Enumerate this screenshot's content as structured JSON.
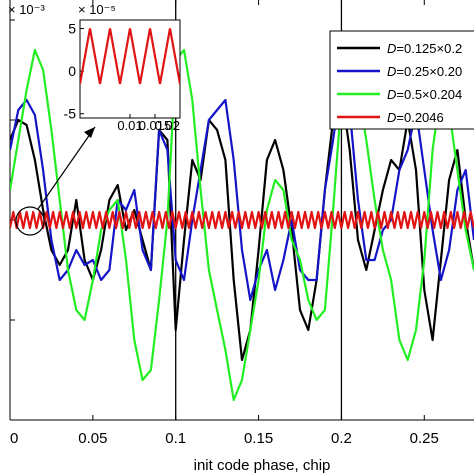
{
  "chart_data": {
    "type": "line",
    "xlabel": "init code phase, chip",
    "ylabel": "",
    "y_exponent_label": "× 10⁻³",
    "xlim": [
      0.0,
      0.28
    ],
    "ylim": [
      -2.0,
      2.2
    ],
    "grid": false,
    "x_ticks": [
      0,
      0.05,
      0.1,
      0.15,
      0.2,
      0.25
    ],
    "x_tick_labels": [
      "0",
      "0.05",
      "0.1",
      "0.15",
      "0.2",
      "0.25"
    ],
    "y_ticks": [
      -2,
      -1,
      0,
      1,
      2
    ],
    "y_tick_labels": [
      "",
      "",
      "",
      "",
      ""
    ],
    "vlines": [
      0.1,
      0.2
    ],
    "legend": {
      "placement": "top-right",
      "entries": [
        {
          "italic_prefix": "D",
          "text": "=0.125×0.2",
          "color": "#000000"
        },
        {
          "italic_prefix": "D",
          "text": "=0.25×0.20",
          "color": "#1414c8"
        },
        {
          "italic_prefix": "D",
          "text": "=0.5×0.204",
          "color": "#22ee22"
        },
        {
          "italic_prefix": "D",
          "text": "=0.2046",
          "color": "#e01414"
        }
      ]
    },
    "series": [
      {
        "name": "D=0.125×0.2",
        "color": "#000000",
        "x": [
          0,
          0.005,
          0.01,
          0.015,
          0.02,
          0.025,
          0.03,
          0.035,
          0.04,
          0.045,
          0.05,
          0.055,
          0.06,
          0.065,
          0.07,
          0.075,
          0.08,
          0.085,
          0.09,
          0.095,
          0.1,
          0.105,
          0.11,
          0.115,
          0.12,
          0.125,
          0.13,
          0.135,
          0.14,
          0.145,
          0.15,
          0.155,
          0.16,
          0.165,
          0.17,
          0.175,
          0.18,
          0.185,
          0.19,
          0.195,
          0.2,
          0.205,
          0.21,
          0.215,
          0.22,
          0.225,
          0.23,
          0.235,
          0.24,
          0.245,
          0.25,
          0.255,
          0.26,
          0.265,
          0.27,
          0.275,
          0.28
        ],
        "values": [
          0.8,
          1.0,
          0.95,
          0.6,
          0.1,
          -0.3,
          -0.45,
          -0.3,
          0.2,
          -0.4,
          -0.6,
          -0.3,
          0.2,
          0.35,
          -0.1,
          0.1,
          -0.2,
          -0.5,
          0.9,
          0.8,
          -1.1,
          -0.2,
          0.6,
          0.4,
          1.0,
          0.9,
          0.6,
          -0.6,
          -1.4,
          -1.1,
          -0.3,
          0.6,
          0.8,
          0.5,
          -0.1,
          -0.9,
          -1.1,
          -0.6,
          0.3,
          1.0,
          1.3,
          0.7,
          -0.2,
          -0.5,
          -0.1,
          0.3,
          0.6,
          0.5,
          1.0,
          0.5,
          -0.7,
          -1.2,
          -0.4,
          0.4,
          0.7,
          0.0,
          -0.5
        ]
      },
      {
        "name": "D=0.25×0.20",
        "color": "#1414c8",
        "x": [
          0,
          0.005,
          0.01,
          0.015,
          0.02,
          0.025,
          0.03,
          0.035,
          0.04,
          0.045,
          0.05,
          0.055,
          0.06,
          0.065,
          0.07,
          0.075,
          0.08,
          0.085,
          0.09,
          0.095,
          0.1,
          0.105,
          0.11,
          0.115,
          0.12,
          0.125,
          0.13,
          0.135,
          0.14,
          0.145,
          0.15,
          0.155,
          0.16,
          0.165,
          0.17,
          0.175,
          0.18,
          0.185,
          0.19,
          0.195,
          0.2,
          0.205,
          0.21,
          0.215,
          0.22,
          0.225,
          0.23,
          0.235,
          0.24,
          0.245,
          0.25,
          0.255,
          0.26,
          0.265,
          0.27,
          0.275,
          0.28
        ],
        "values": [
          0.7,
          1.1,
          1.2,
          1.05,
          0.5,
          -0.2,
          -0.6,
          -0.5,
          -0.3,
          -0.45,
          -0.4,
          -0.6,
          -0.5,
          0.2,
          0.1,
          0.3,
          -0.3,
          -0.5,
          0.9,
          0.7,
          -0.4,
          -0.6,
          0.0,
          0.5,
          1.0,
          1.1,
          1.2,
          0.6,
          -0.3,
          -0.8,
          -0.5,
          -0.3,
          -0.7,
          -0.4,
          0.0,
          -0.5,
          -0.6,
          -0.6,
          0.3,
          0.8,
          1.4,
          1.1,
          0.2,
          -0.4,
          -0.4,
          -0.1,
          0.0,
          0.5,
          0.7,
          1.1,
          0.5,
          -0.1,
          -0.6,
          -0.3,
          0.3,
          0.5,
          -0.2
        ]
      },
      {
        "name": "D=0.5×0.204",
        "color": "#22ee22",
        "x": [
          0,
          0.005,
          0.01,
          0.015,
          0.02,
          0.025,
          0.03,
          0.035,
          0.04,
          0.045,
          0.05,
          0.055,
          0.06,
          0.065,
          0.07,
          0.075,
          0.08,
          0.085,
          0.09,
          0.095,
          0.1,
          0.105,
          0.11,
          0.115,
          0.12,
          0.125,
          0.13,
          0.135,
          0.14,
          0.145,
          0.15,
          0.155,
          0.16,
          0.165,
          0.17,
          0.175,
          0.18,
          0.185,
          0.19,
          0.195,
          0.2,
          0.205,
          0.21,
          0.215,
          0.22,
          0.225,
          0.23,
          0.235,
          0.24,
          0.245,
          0.25,
          0.255,
          0.26,
          0.265,
          0.27,
          0.275,
          0.28
        ],
        "values": [
          0.3,
          0.8,
          1.3,
          1.7,
          1.5,
          0.9,
          0.2,
          -0.5,
          -0.9,
          -1.0,
          -0.6,
          -0.1,
          0.1,
          0.2,
          -0.4,
          -1.2,
          -1.6,
          -1.5,
          -0.8,
          0.0,
          1.6,
          1.7,
          1.2,
          0.3,
          -0.5,
          -0.9,
          -1.3,
          -1.8,
          -1.6,
          -1.1,
          -0.6,
          0.1,
          0.4,
          0.3,
          -0.2,
          -0.4,
          -0.8,
          -1.0,
          -0.9,
          0.1,
          1.2,
          1.7,
          1.3,
          0.8,
          0.2,
          -0.3,
          -0.6,
          -1.2,
          -1.4,
          -1.1,
          -0.4,
          0.7,
          1.3,
          1.1,
          0.5,
          -0.1,
          -0.5
        ]
      },
      {
        "name": "D=0.2046",
        "color": "#e01414",
        "generator": "zigzag",
        "amplitude": 0.08,
        "period": 0.004,
        "xlim": [
          0,
          0.28
        ]
      }
    ],
    "annotation": {
      "type": "zoom-circle",
      "x": 0.015,
      "y": 0.0
    },
    "inset": {
      "type": "line",
      "y_exponent_label": "× 10⁻⁵",
      "xlim": [
        0.0,
        0.02
      ],
      "ylim": [
        -5.5,
        6
      ],
      "x_ticks": [
        0.01,
        0.015,
        0.02
      ],
      "x_tick_labels": [
        "0.01",
        "0.015",
        "0.02"
      ],
      "y_ticks": [
        -5,
        0,
        5
      ],
      "y_tick_labels": [
        "-5",
        "0",
        "5"
      ],
      "series": [
        {
          "color": "#e01414",
          "x": [
            0.0,
            0.002,
            0.004,
            0.006,
            0.008,
            0.01,
            0.012,
            0.014,
            0.016,
            0.018,
            0.02
          ],
          "values": [
            -1.5,
            5.0,
            -1.5,
            5.0,
            -1.5,
            5.0,
            -1.5,
            5.0,
            -1.5,
            5.0,
            -1.5
          ]
        }
      ]
    }
  }
}
